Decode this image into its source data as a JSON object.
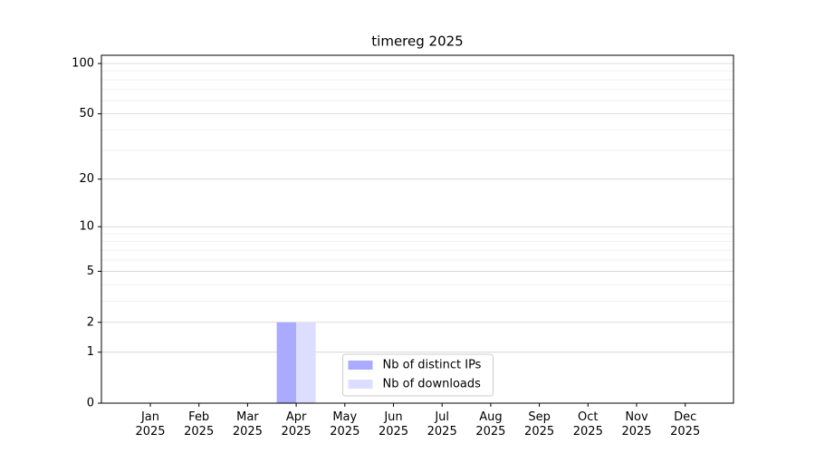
{
  "chart_data": {
    "type": "bar",
    "title": "timereg 2025",
    "categories": [
      "Jan\n2025",
      "Feb\n2025",
      "Mar\n2025",
      "Apr\n2025",
      "May\n2025",
      "Jun\n2025",
      "Jul\n2025",
      "Aug\n2025",
      "Sep\n2025",
      "Oct\n2025",
      "Nov\n2025",
      "Dec\n2025"
    ],
    "series": [
      {
        "name": "Nb of distinct IPs",
        "color": "#aaaaff",
        "values": [
          0,
          0,
          0,
          2,
          0,
          0,
          0,
          0,
          0,
          0,
          0,
          0
        ]
      },
      {
        "name": "Nb of downloads",
        "color": "#ddddff",
        "values": [
          0,
          0,
          0,
          2,
          0,
          0,
          0,
          0,
          0,
          0,
          0,
          0
        ]
      }
    ],
    "yscale": "log1p",
    "ylim": [
      0,
      112
    ],
    "yticks": [
      0,
      1,
      2,
      5,
      10,
      20,
      50,
      100
    ],
    "minor_grid": [
      3,
      4,
      6,
      7,
      8,
      9,
      30,
      40,
      60,
      70,
      80,
      90
    ],
    "grid": true,
    "legend": "lower center"
  }
}
